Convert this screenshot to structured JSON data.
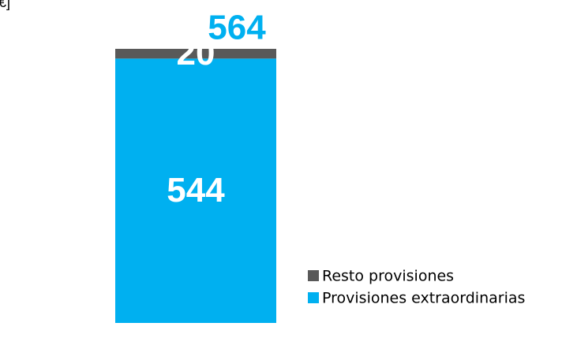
{
  "chart_data": {
    "type": "stacked_bar",
    "subtitle": "€]",
    "categories": [
      null
    ],
    "series": [
      {
        "name": "Provisiones extraordinarias",
        "color": "#00b0f0",
        "values": [
          544
        ]
      },
      {
        "name": "Resto provisiones",
        "color": "#595959",
        "values": [
          20
        ]
      }
    ],
    "totals": [
      564
    ],
    "ylim": [
      0,
      564
    ],
    "legend": "right"
  }
}
